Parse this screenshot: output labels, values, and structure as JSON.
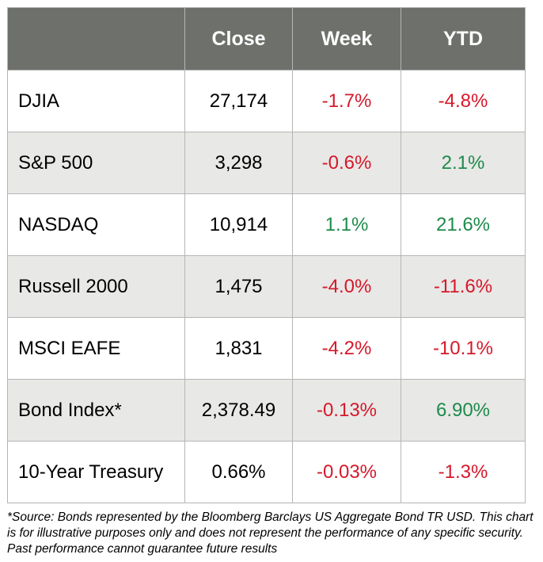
{
  "table": {
    "headers": [
      "",
      "Close",
      "Week",
      "YTD"
    ],
    "rows": [
      {
        "name": "DJIA",
        "close": "27,174",
        "week": "-1.7%",
        "ytd": "-4.8%"
      },
      {
        "name": "S&P 500",
        "close": "3,298",
        "week": "-0.6%",
        "ytd": "2.1%"
      },
      {
        "name": "NASDAQ",
        "close": "10,914",
        "week": "1.1%",
        "ytd": "21.6%"
      },
      {
        "name": "Russell 2000",
        "close": "1,475",
        "week": "-4.0%",
        "ytd": "-11.6%"
      },
      {
        "name": "MSCI EAFE",
        "close": "1,831",
        "week": "-4.2%",
        "ytd": "-10.1%"
      },
      {
        "name": "Bond Index*",
        "close": "2,378.49",
        "week": "-0.13%",
        "ytd": "6.90%"
      },
      {
        "name": "10-Year Treasury",
        "close": "0.66%",
        "week": "-0.03%",
        "ytd": "-1.3%"
      }
    ]
  },
  "colors": {
    "header_bg": "#6e706c",
    "shaded_row_bg": "#e8e8e6",
    "negative": "#d6182b",
    "positive": "#1e8a4c"
  },
  "footnote": "*Source: Bonds represented by the Bloomberg Barclays US Aggregate Bond TR USD.  This chart is for illustrative purposes only and does not represent the performance of any specific security. Past performance cannot guarantee future results"
}
